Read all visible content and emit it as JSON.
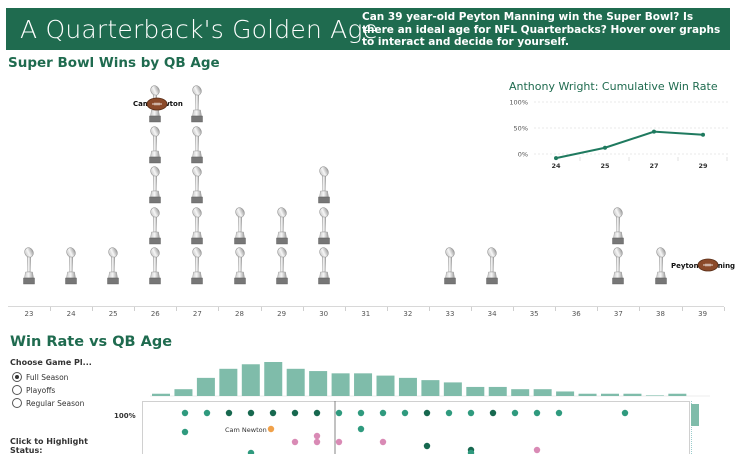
{
  "banner": {
    "title": "A Quarterback's Golden Age",
    "subtitle": "Can 39 year-old Peyton Manning win the Super Bowl? Is there an ideal age for NFL Quarterbacks? Hover over graphs to interact and decide for yourself."
  },
  "super_bowl_section": {
    "title": "Super Bowl Wins by QB Age",
    "ages": [
      "23",
      "24",
      "25",
      "26",
      "27",
      "28",
      "29",
      "30",
      "31",
      "32",
      "33",
      "34",
      "35",
      "36",
      "37",
      "38",
      "39"
    ],
    "highlight_labels": {
      "cam": "Cam Newton",
      "peyton": "Peyton Manning"
    },
    "icon": "trophy-icon"
  },
  "inset": {
    "title": "Anthony Wright: Cumulative Win Rate",
    "y_ticks": [
      "100%",
      "50%",
      "0%"
    ],
    "x_ticks": [
      "24",
      "25",
      "27",
      "29"
    ]
  },
  "win_rate_section": {
    "title": "Win Rate vs QB Age",
    "game_type_label": "Choose Game Pl...",
    "options": [
      {
        "label": "Full Season",
        "selected": true
      },
      {
        "label": "Playoffs",
        "selected": false
      },
      {
        "label": "Regular Season",
        "selected": false
      }
    ],
    "highlight_label": "Click to Highlight",
    "status_label": "Status:",
    "y_label": "100%",
    "cam_label": "Cam Newton"
  },
  "chart_data": [
    {
      "type": "bar",
      "title": "Super Bowl Wins by QB Age",
      "categories": [
        "23",
        "24",
        "25",
        "26",
        "27",
        "28",
        "29",
        "30",
        "31",
        "32",
        "33",
        "34",
        "35",
        "36",
        "37",
        "38",
        "39"
      ],
      "values": [
        1,
        1,
        1,
        5,
        5,
        2,
        2,
        3,
        0,
        0,
        1,
        1,
        0,
        0,
        2,
        1,
        0
      ],
      "xlabel": "",
      "ylabel": ""
    },
    {
      "type": "line",
      "title": "Anthony Wright: Cumulative Win Rate",
      "x": [
        24,
        25,
        27,
        29
      ],
      "values": [
        -0.08,
        0.12,
        0.43,
        0.37
      ],
      "ylim": [
        0,
        1
      ],
      "y_ticks": [
        "100%",
        "50%",
        "0%"
      ],
      "color": "#1f7a5f"
    },
    {
      "type": "bar",
      "title": "",
      "values": [
        1,
        3,
        8,
        12,
        14,
        15,
        12,
        11,
        10,
        10,
        9,
        8,
        7,
        6,
        4,
        4,
        3,
        3,
        2,
        1,
        1,
        1,
        0,
        1
      ],
      "color": "#7fbcaa"
    }
  ],
  "colors": {
    "brand": "#1f6b4f",
    "dot_teal": "#2f9a7e",
    "dot_dark": "#17684f",
    "dot_pink": "#d98ab5",
    "dot_orange": "#f0a14a",
    "hist": "#7fbcaa"
  }
}
